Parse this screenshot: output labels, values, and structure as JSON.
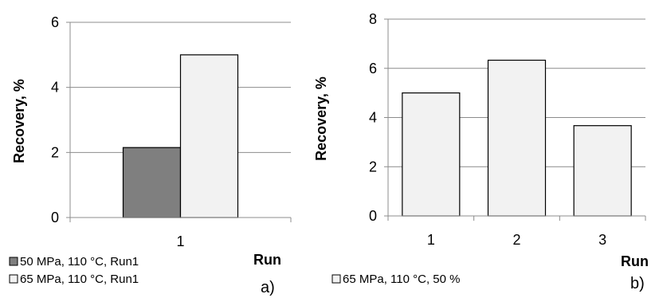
{
  "chart_data": [
    {
      "type": "bar",
      "panel_label": "a)",
      "categories": [
        "1"
      ],
      "series": [
        {
          "name": "50 MPa, 110 °C, Run1",
          "values": [
            2.15
          ],
          "color": "#7f7f7f"
        },
        {
          "name": "65 MPa, 110 °C, Run1",
          "values": [
            5.0
          ],
          "color": "#f2f2f2"
        }
      ],
      "xlabel": "Run",
      "ylabel": "Recovery, %",
      "ylim": [
        0,
        6
      ],
      "yticks": [
        0,
        2,
        4,
        6
      ],
      "grid": true,
      "legend": "bottom-left"
    },
    {
      "type": "bar",
      "panel_label": "b)",
      "categories": [
        "1",
        "2",
        "3"
      ],
      "series": [
        {
          "name": "65 MPa, 110 °C, 50 %",
          "values": [
            5.0,
            6.33,
            3.67
          ],
          "color": "#f2f2f2"
        }
      ],
      "xlabel": "Run",
      "ylabel": "Recovery, %",
      "ylim": [
        0,
        8
      ],
      "yticks": [
        0,
        2,
        4,
        6,
        8
      ],
      "grid": true,
      "legend": "bottom-left"
    }
  ]
}
